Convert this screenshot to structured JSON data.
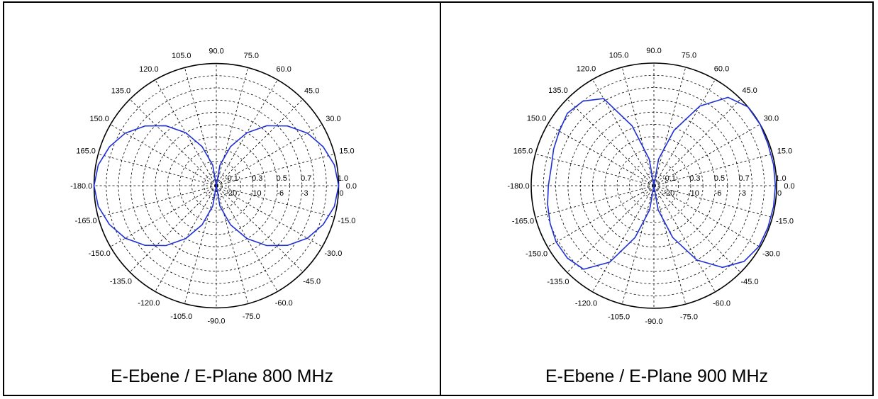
{
  "chart_data": [
    {
      "type": "polar-line",
      "caption": "E-Ebene / E-Plane 800 MHz",
      "angle_labels": [
        "0.0",
        "15.0",
        "30.0",
        "45.0",
        "60.0",
        "75.0",
        "90.0",
        "105.0",
        "120.0",
        "135.0",
        "150.0",
        "165.0",
        "-180.0",
        "-165.0",
        "-150.0",
        "-135.0",
        "-120.0",
        "-105.0",
        "-90.0",
        "-75.0",
        "-60.0",
        "-45.0",
        "-30.0",
        "-15.0"
      ],
      "radial_labels": [
        "0.1",
        "0.3",
        "0.5",
        "0.7",
        "1.0"
      ],
      "db_labels": [
        "-20",
        "-10",
        "-6",
        "-3",
        "0"
      ],
      "radial_range": [
        0,
        1
      ],
      "grid": true,
      "series": [
        {
          "color": "#1f2fd6",
          "theta": [
            0,
            10,
            20,
            30,
            40,
            50,
            60,
            70,
            80,
            90,
            100,
            110,
            120,
            130,
            140,
            150,
            160,
            170,
            180,
            190,
            200,
            210,
            220,
            230,
            240,
            250,
            260,
            270,
            280,
            290,
            300,
            310,
            320,
            330,
            340,
            350,
            360
          ],
          "r": [
            1.0,
            0.98,
            0.93,
            0.86,
            0.76,
            0.64,
            0.5,
            0.34,
            0.17,
            0.0,
            0.17,
            0.34,
            0.5,
            0.64,
            0.76,
            0.86,
            0.93,
            0.98,
            1.0,
            0.98,
            0.93,
            0.86,
            0.76,
            0.64,
            0.5,
            0.34,
            0.17,
            0.0,
            0.17,
            0.34,
            0.5,
            0.64,
            0.76,
            0.86,
            0.93,
            0.98,
            1.0
          ]
        }
      ]
    },
    {
      "type": "polar-line",
      "caption": "E-Ebene / E-Plane 900 MHz",
      "angle_labels": [
        "0.0",
        "15.0",
        "30.0",
        "45.0",
        "60.0",
        "75.0",
        "90.0",
        "105.0",
        "120.0",
        "135.0",
        "150.0",
        "165.0",
        "-180.0",
        "-165.0",
        "-150.0",
        "-135.0",
        "-120.0",
        "-105.0",
        "-90.0",
        "-75.0",
        "-60.0",
        "-45.0",
        "-30.0",
        "-15.0"
      ],
      "radial_labels": [
        "0.1",
        "0.3",
        "0.5",
        "0.7",
        "1.0"
      ],
      "db_labels": [
        "-20",
        "-10",
        "-6",
        "-3",
        "0"
      ],
      "radial_range": [
        0,
        1
      ],
      "grid": true,
      "series": [
        {
          "color": "#1f2fd6",
          "theta": [
            0,
            10,
            20,
            30,
            40,
            50,
            60,
            70,
            80,
            90,
            100,
            110,
            120,
            130,
            140,
            150,
            160,
            170,
            180,
            190,
            200,
            210,
            220,
            230,
            240,
            250,
            260,
            270,
            280,
            290,
            300,
            310,
            320,
            330,
            340,
            350,
            360
          ],
          "r": [
            0.99,
            0.99,
            0.99,
            1.0,
            1.0,
            0.94,
            0.75,
            0.48,
            0.22,
            0.0,
            0.22,
            0.52,
            0.82,
            0.9,
            0.92,
            0.89,
            0.87,
            0.85,
            0.86,
            0.88,
            0.9,
            0.92,
            0.92,
            0.89,
            0.72,
            0.45,
            0.2,
            0.0,
            0.2,
            0.45,
            0.7,
            0.87,
            0.96,
            0.99,
            0.99,
            0.99,
            0.99
          ]
        }
      ]
    }
  ]
}
